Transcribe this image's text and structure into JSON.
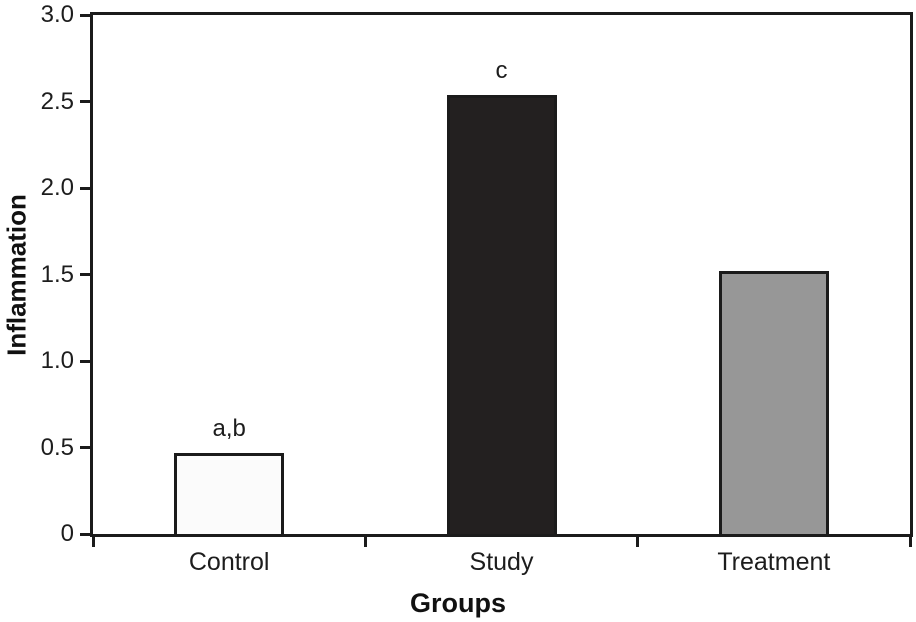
{
  "chart_data": {
    "type": "bar",
    "xlabel": "Groups",
    "ylabel": "Inflammation",
    "categories": [
      "Control",
      "Study",
      "Treatment"
    ],
    "values": [
      0.47,
      2.55,
      1.53
    ],
    "bar_labels": [
      "a,b",
      "c",
      ""
    ],
    "bar_fill_colors": [
      "#fbfbfb",
      "#232020",
      "#979797"
    ],
    "bar_border_color": "#1b1b1b",
    "axis_color": "#1b1b1b",
    "background_color": "#ffffff",
    "ylim": [
      0,
      3.0
    ],
    "y_ticks": [
      0,
      0.5,
      1.0,
      1.5,
      2.0,
      2.5,
      3.0
    ],
    "y_tick_labels": [
      "0",
      "0.5",
      "1.0",
      "1.5",
      "2.0",
      "2.5",
      "3.0"
    ],
    "grid": false,
    "legend": "none",
    "frame": "full-box"
  }
}
